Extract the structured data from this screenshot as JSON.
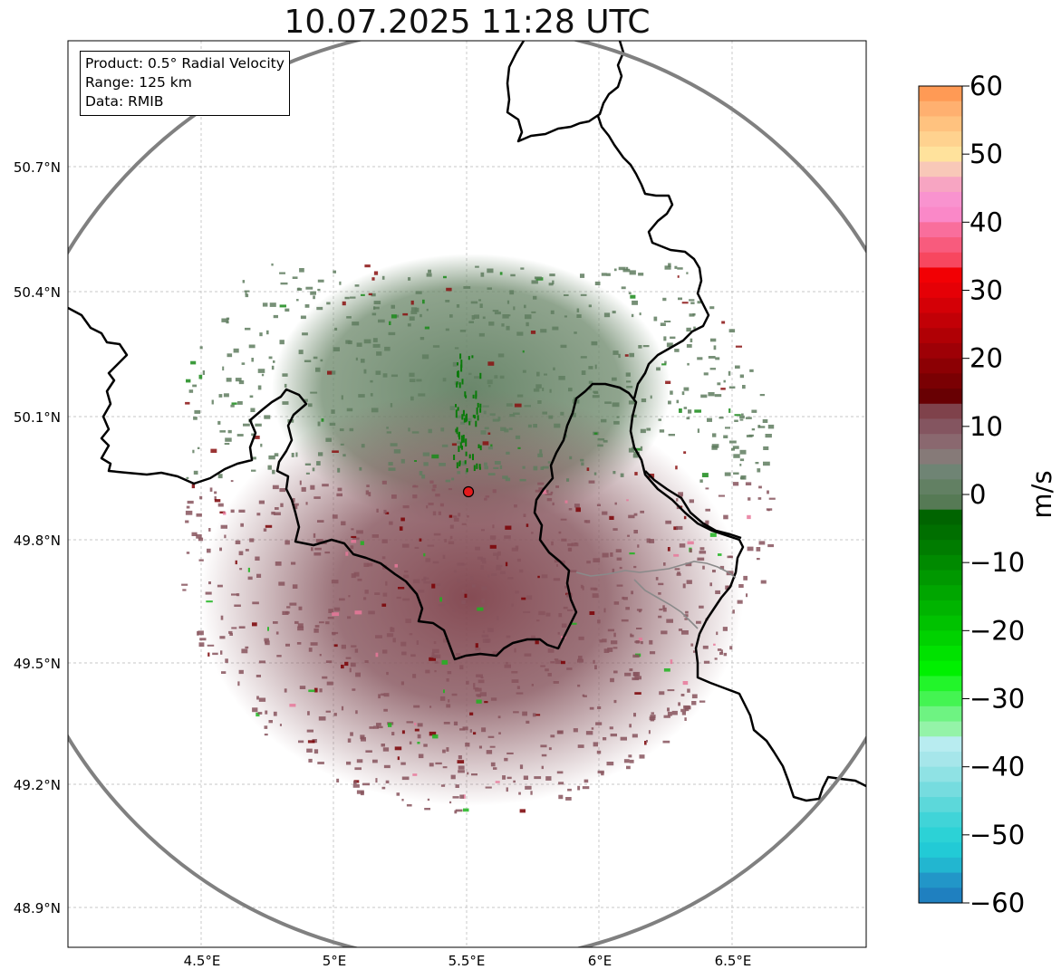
{
  "title": "10.07.2025 11:28 UTC",
  "info": {
    "product": "Product: 0.5° Radial Velocity",
    "range": "Range: 125 km",
    "source": "Data: RMIB"
  },
  "lat_labels": [
    "50.7°N",
    "50.4°N",
    "50.1°N",
    "49.8°N",
    "49.5°N",
    "49.2°N",
    "48.9°N"
  ],
  "lon_labels": [
    "4.5°E",
    "5°E",
    "5.5°E",
    "6°E",
    "6.5°E"
  ],
  "radar_site": {
    "lat": 49.914,
    "lon": 5.505
  },
  "colorbar": {
    "unit": "m/s",
    "min": -60,
    "max": 60,
    "ticks": [
      "60",
      "50",
      "40",
      "30",
      "20",
      "10",
      "0",
      "−10",
      "−20",
      "−30",
      "−40",
      "−50",
      "−60"
    ],
    "stops": [
      [
        "#ff9a55",
        "#ffb070",
        "#ffc27f",
        "#ffd28f",
        "#ffe29c",
        "#f8c8b8",
        "#f7a5c2",
        "#f993cf",
        "#fa88c8",
        "#f96e9c",
        "#f85b7d",
        "#f7475f"
      ],
      [
        "#f20004",
        "#e50006",
        "#d40006",
        "#c20006",
        "#b00005",
        "#9e0006",
        "#8c0004",
        "#7a0003",
        "#680003",
        "#7f424b",
        "#845560",
        "#8a686f"
      ],
      [
        "#867a78",
        "#6f8474",
        "#628063",
        "#567a55",
        "#006400",
        "#006f00",
        "#007c00",
        "#008a00",
        "#009800",
        "#00a600",
        "#00b400",
        "#00c200"
      ],
      [
        "#00d200",
        "#00e200",
        "#00f000",
        "#22f52a",
        "#44f452",
        "#6ef382",
        "#94f3a8",
        "#b8ecf0",
        "#a6e6ea",
        "#8fe2e4",
        "#76dcdf",
        "#5cd8da"
      ],
      [
        "#40d4d8",
        "#2cd2d6",
        "#22cad6",
        "#22b6d0",
        "#2296c8",
        "#1f80c0"
      ]
    ]
  }
}
